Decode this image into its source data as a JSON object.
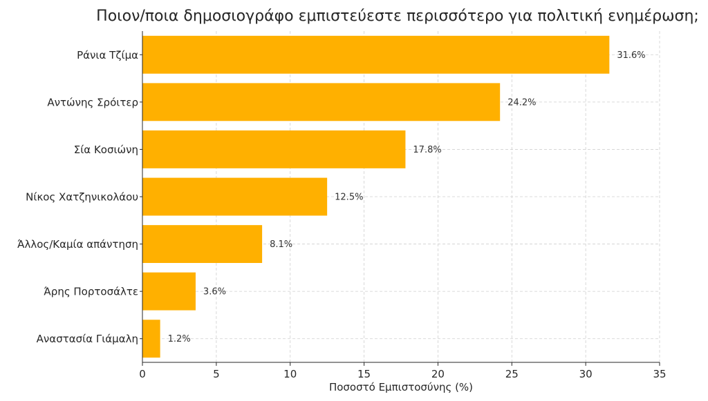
{
  "chart_data": {
    "type": "bar",
    "orientation": "horizontal",
    "title": "Ποιον/ποια δημοσιογράφο εμπιστεύεστε περισσότερο για πολιτική ενημέρωση;",
    "xlabel": "Ποσοστό Εμπιστοσύνης (%)",
    "ylabel": "",
    "xlim": [
      0,
      35
    ],
    "xticks": [
      0,
      5,
      10,
      15,
      20,
      25,
      30,
      35
    ],
    "grid": true,
    "bar_color": "#FFB000",
    "categories": [
      "Ράνια Τζίμα",
      "Αντώνης Σρόιτερ",
      "Σία Κοσιώνη",
      "Νίκος Χατζηνικολάου",
      "Άλλος/Καμία απάντηση",
      "Άρης Πορτοσάλτε",
      "Αναστασία Γιάμαλη"
    ],
    "values": [
      31.6,
      24.2,
      17.8,
      12.5,
      8.1,
      3.6,
      1.2
    ],
    "value_labels": [
      "31.6%",
      "24.2%",
      "17.8%",
      "12.5%",
      "8.1%",
      "3.6%",
      "1.2%"
    ]
  }
}
